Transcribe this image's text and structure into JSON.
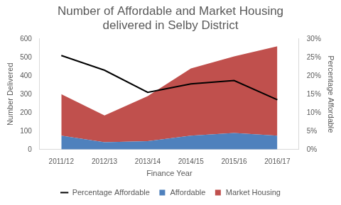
{
  "chart_data": {
    "type": "area",
    "title": [
      "Number of Affordable and Market Housing",
      "delivered in Selby District"
    ],
    "x_label": "Finance Year",
    "y_label": "Number Delivered",
    "y2_label": "Percentage Affordable",
    "categories": [
      "2011/12",
      "2012/13",
      "2013/14",
      "2014/15",
      "2015/16",
      "2016/17"
    ],
    "stacked": true,
    "series": [
      {
        "name": "Affordable",
        "type": "area",
        "color": "#4f81bd",
        "values": [
          75,
          40,
          45,
          75,
          90,
          75
        ]
      },
      {
        "name": "Market Housing",
        "type": "area",
        "color": "#c0504d",
        "values": [
          225,
          145,
          245,
          365,
          415,
          485
        ]
      },
      {
        "name": "Percentage Affordable",
        "type": "line",
        "color": "#000000",
        "axis": "y2",
        "values": [
          25.5,
          21.5,
          15.5,
          17.8,
          18.7,
          13.5
        ]
      }
    ],
    "ylim": [
      0,
      600
    ],
    "yticks": [
      0,
      100,
      200,
      300,
      400,
      500,
      600
    ],
    "y2lim": [
      0,
      30
    ],
    "y2ticks": [
      {
        "value": 0,
        "label": "0%"
      },
      {
        "value": 5,
        "label": "5%"
      },
      {
        "value": 10,
        "label": "10%"
      },
      {
        "value": 15,
        "label": "15%"
      },
      {
        "value": 20,
        "label": "20%"
      },
      {
        "value": 25,
        "label": "25%"
      },
      {
        "value": 30,
        "label": "30%"
      }
    ],
    "grid": false,
    "legend": "bottom"
  }
}
